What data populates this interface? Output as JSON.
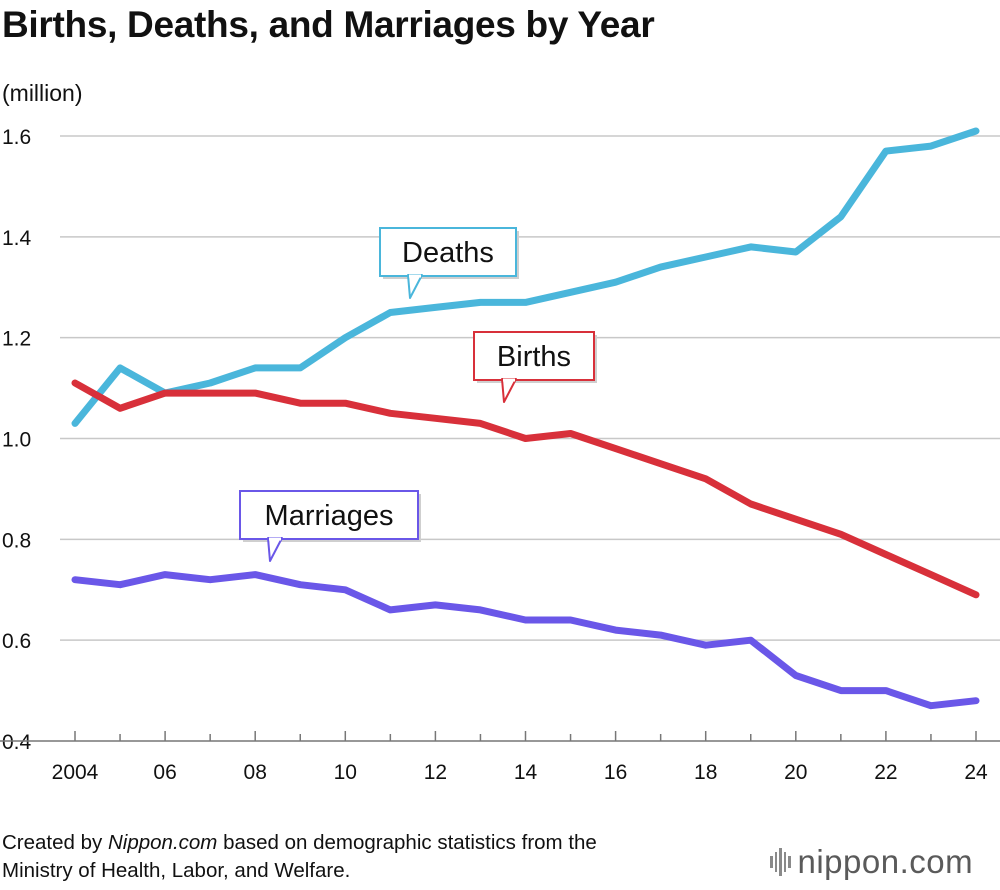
{
  "chart_data": {
    "type": "line",
    "title": "Births, Deaths, and Marriages by Year",
    "ylabel": "(million)",
    "xlabel": "",
    "ylim": [
      0.4,
      1.6
    ],
    "yticks": [
      "0.4",
      "0.6",
      "0.8",
      "1.0",
      "1.2",
      "1.4",
      "1.6"
    ],
    "x": [
      2004,
      2005,
      2006,
      2007,
      2008,
      2009,
      2010,
      2011,
      2012,
      2013,
      2014,
      2015,
      2016,
      2017,
      2018,
      2019,
      2020,
      2021,
      2022,
      2023,
      2024
    ],
    "xtick_labels": [
      "2004",
      "06",
      "08",
      "10",
      "12",
      "14",
      "16",
      "18",
      "20",
      "22",
      "24"
    ],
    "grid": true,
    "series": [
      {
        "name": "Deaths",
        "color": "#4ab6db",
        "values": [
          1.03,
          1.14,
          1.09,
          1.11,
          1.14,
          1.14,
          1.2,
          1.25,
          1.26,
          1.27,
          1.27,
          1.29,
          1.31,
          1.34,
          1.36,
          1.38,
          1.37,
          1.44,
          1.57,
          1.58,
          1.61
        ]
      },
      {
        "name": "Births",
        "color": "#d8303a",
        "values": [
          1.11,
          1.06,
          1.09,
          1.09,
          1.09,
          1.07,
          1.07,
          1.05,
          1.04,
          1.03,
          1.0,
          1.01,
          0.98,
          0.95,
          0.92,
          0.87,
          0.84,
          0.81,
          0.77,
          0.73,
          0.69
        ]
      },
      {
        "name": "Marriages",
        "color": "#6a57e8",
        "values": [
          0.72,
          0.71,
          0.73,
          0.72,
          0.73,
          0.71,
          0.7,
          0.66,
          0.67,
          0.66,
          0.64,
          0.64,
          0.62,
          0.61,
          0.59,
          0.6,
          0.53,
          0.5,
          0.5,
          0.47,
          0.48
        ]
      }
    ]
  },
  "footer": {
    "prefix": "Created by ",
    "source": "Nippon.com",
    "suffix": " based on demographic statistics from the",
    "line2": "Ministry of Health, Labor, and Welfare."
  },
  "logo": {
    "name": "nippon",
    "dot": ".",
    "tld": "com"
  }
}
